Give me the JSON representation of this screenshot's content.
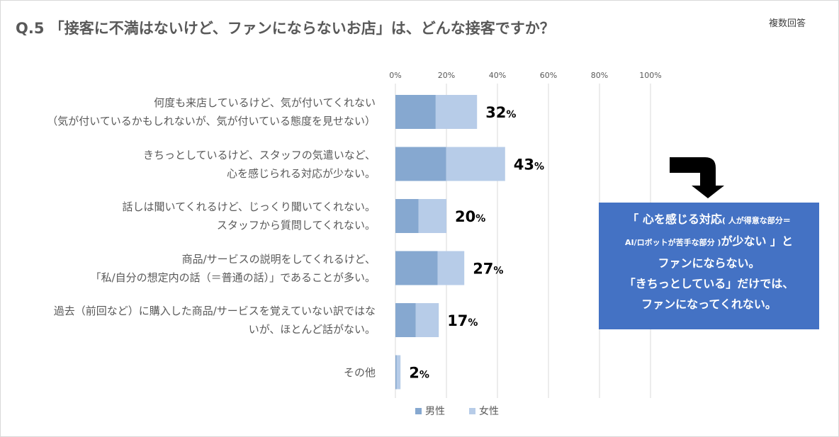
{
  "title": "Q.5 「接客に不満はないけど、ファンにならないお店」は、どんな接客ですか？",
  "note": "複数回答",
  "chart_data": {
    "type": "bar",
    "orientation": "horizontal",
    "stacked": true,
    "xlim": [
      0,
      100
    ],
    "x_ticks": [
      "0%",
      "20%",
      "40%",
      "60%",
      "80%",
      "100%"
    ],
    "grid": true,
    "legend_position": "bottom",
    "categories": [
      [
        "何度も来店しているけど、気が付いてくれない",
        "（気が付いているかもしれないが、気が付いている態度を見せない）"
      ],
      [
        "きちっとしているけど、スタッフの気遣いなど、",
        "心を感じられる対応が少ない。"
      ],
      [
        "話しは聞いてくれるけど、じっくり聞いてくれない。",
        "スタッフから質問してくれない。"
      ],
      [
        "商品/サービスの説明をしてくれるけど、",
        "「私/自分の想定内の話（＝普通の話）」であることが多い。"
      ],
      [
        "過去（前回など）に購入した商品/サービスを覚えていない訳ではな",
        "いが、ほとんど話がない。"
      ],
      [
        "その他"
      ]
    ],
    "series": [
      {
        "name": "男性",
        "color": "#86a8d0",
        "values": [
          15.8,
          19.9,
          9.1,
          16.6,
          8.0,
          0.5
        ]
      },
      {
        "name": "女性",
        "color": "#b7cce8",
        "values": [
          16.2,
          23.1,
          10.9,
          10.4,
          9.0,
          1.5
        ]
      }
    ],
    "totals": [
      32,
      43,
      20,
      27,
      17,
      2
    ],
    "total_labels": [
      "32",
      "43",
      "20",
      "27",
      "17",
      "2"
    ],
    "total_unit": "%"
  },
  "callout": {
    "line1_main": "「 心を感じる対応",
    "line1_small": "( 人が得意な部分＝",
    "line2_small": "AI/ロボットが苦手な部分 )",
    "line2_main": "が少ない 」と",
    "line3": "ファンにならない。",
    "line4": "「きちっとしている」だけでは、",
    "line5": "ファンになってくれない。",
    "color": "#4472c4"
  }
}
